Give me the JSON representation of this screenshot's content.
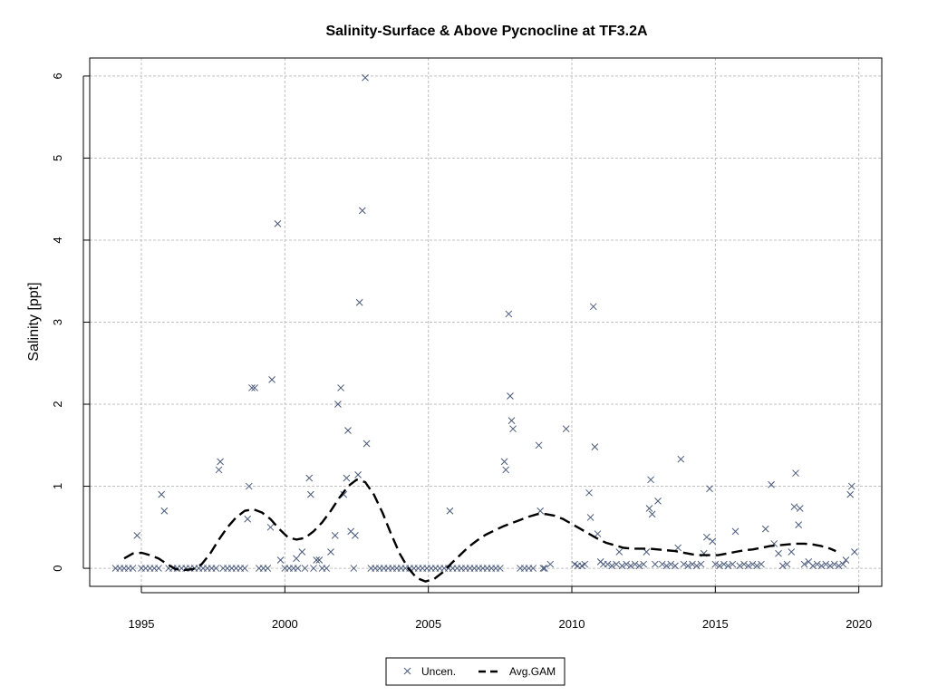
{
  "chart_data": {
    "type": "scatter",
    "title": "Salinity-Surface & Above Pycnocline at TF3.2A",
    "xlabel": "",
    "ylabel": "Salinity [ppt]",
    "xlim": [
      1993.2,
      2020.8
    ],
    "ylim": [
      -0.22,
      6.22
    ],
    "x_ticks": [
      1995,
      2000,
      2005,
      2010,
      2015,
      2020
    ],
    "y_ticks": [
      0,
      1,
      2,
      3,
      4,
      5,
      6
    ],
    "grid": true,
    "legend_position": "bottom-center",
    "colors": {
      "points": "#4a5a7a",
      "gam": "#000000",
      "grid": "#c0c0c0"
    },
    "series": [
      {
        "name": "Uncen.",
        "marker": "x",
        "points": [
          [
            1994.1,
            0
          ],
          [
            1994.25,
            0
          ],
          [
            1994.4,
            0
          ],
          [
            1994.55,
            0
          ],
          [
            1994.7,
            0
          ],
          [
            1994.85,
            0.4
          ],
          [
            1995.0,
            0
          ],
          [
            1995.15,
            0
          ],
          [
            1995.3,
            0
          ],
          [
            1995.45,
            0
          ],
          [
            1995.6,
            0
          ],
          [
            1995.7,
            0.9
          ],
          [
            1995.8,
            0.7
          ],
          [
            1995.95,
            0
          ],
          [
            1996.1,
            0
          ],
          [
            1996.25,
            0
          ],
          [
            1996.4,
            0
          ],
          [
            1996.55,
            0
          ],
          [
            1996.7,
            0
          ],
          [
            1996.85,
            0
          ],
          [
            1997.0,
            0
          ],
          [
            1997.15,
            0
          ],
          [
            1997.3,
            0
          ],
          [
            1997.45,
            0
          ],
          [
            1997.6,
            0
          ],
          [
            1997.7,
            1.2
          ],
          [
            1997.75,
            1.3
          ],
          [
            1997.85,
            0
          ],
          [
            1998.0,
            0
          ],
          [
            1998.15,
            0
          ],
          [
            1998.3,
            0
          ],
          [
            1998.45,
            0
          ],
          [
            1998.6,
            0
          ],
          [
            1998.7,
            0.6
          ],
          [
            1998.75,
            1.0
          ],
          [
            1998.85,
            2.2
          ],
          [
            1998.95,
            2.2
          ],
          [
            1999.1,
            0
          ],
          [
            1999.25,
            0
          ],
          [
            1999.4,
            0
          ],
          [
            1999.5,
            0.5
          ],
          [
            1999.55,
            2.3
          ],
          [
            1999.75,
            4.2
          ],
          [
            1999.85,
            0.1
          ],
          [
            2000.0,
            0
          ],
          [
            2000.15,
            0
          ],
          [
            2000.3,
            0
          ],
          [
            2000.4,
            0.12
          ],
          [
            2000.45,
            0
          ],
          [
            2000.6,
            0.2
          ],
          [
            2000.7,
            0
          ],
          [
            2000.85,
            1.1
          ],
          [
            2000.9,
            0.9
          ],
          [
            2001.0,
            0
          ],
          [
            2001.1,
            0.1
          ],
          [
            2001.2,
            0.1
          ],
          [
            2001.3,
            0
          ],
          [
            2001.45,
            0
          ],
          [
            2001.6,
            0.2
          ],
          [
            2001.75,
            0.4
          ],
          [
            2001.85,
            2.0
          ],
          [
            2001.95,
            2.2
          ],
          [
            2002.05,
            0.9
          ],
          [
            2002.15,
            1.1
          ],
          [
            2002.2,
            1.68
          ],
          [
            2002.3,
            0.45
          ],
          [
            2002.4,
            0
          ],
          [
            2002.45,
            0.4
          ],
          [
            2002.55,
            1.14
          ],
          [
            2002.6,
            3.24
          ],
          [
            2002.7,
            4.36
          ],
          [
            2002.8,
            5.98
          ],
          [
            2002.85,
            1.52
          ],
          [
            2003.0,
            0
          ],
          [
            2003.15,
            0
          ],
          [
            2003.3,
            0
          ],
          [
            2003.45,
            0
          ],
          [
            2003.6,
            0
          ],
          [
            2003.75,
            0
          ],
          [
            2003.9,
            0
          ],
          [
            2004.05,
            0
          ],
          [
            2004.2,
            0
          ],
          [
            2004.35,
            0
          ],
          [
            2004.5,
            0
          ],
          [
            2004.65,
            0
          ],
          [
            2004.8,
            0
          ],
          [
            2004.95,
            0
          ],
          [
            2005.1,
            0
          ],
          [
            2005.25,
            0
          ],
          [
            2005.4,
            0
          ],
          [
            2005.55,
            0
          ],
          [
            2005.7,
            0
          ],
          [
            2005.75,
            0.7
          ],
          [
            2005.85,
            0
          ],
          [
            2006.0,
            0
          ],
          [
            2006.15,
            0
          ],
          [
            2006.3,
            0
          ],
          [
            2006.45,
            0
          ],
          [
            2006.6,
            0
          ],
          [
            2006.75,
            0
          ],
          [
            2006.9,
            0
          ],
          [
            2007.05,
            0
          ],
          [
            2007.2,
            0
          ],
          [
            2007.35,
            0
          ],
          [
            2007.5,
            0
          ],
          [
            2007.65,
            1.3
          ],
          [
            2007.7,
            1.2
          ],
          [
            2007.8,
            3.1
          ],
          [
            2007.85,
            2.1
          ],
          [
            2007.9,
            1.8
          ],
          [
            2007.95,
            1.7
          ],
          [
            2008.2,
            0
          ],
          [
            2008.35,
            0
          ],
          [
            2008.5,
            0
          ],
          [
            2008.65,
            0
          ],
          [
            2008.85,
            1.5
          ],
          [
            2008.9,
            0.7
          ],
          [
            2009.0,
            0
          ],
          [
            2009.05,
            0
          ],
          [
            2009.25,
            0.05
          ],
          [
            2009.8,
            1.7
          ],
          [
            2010.1,
            0.05
          ],
          [
            2010.2,
            0.03
          ],
          [
            2010.35,
            0.03
          ],
          [
            2010.45,
            0.05
          ],
          [
            2010.6,
            0.92
          ],
          [
            2010.65,
            0.62
          ],
          [
            2010.75,
            3.19
          ],
          [
            2010.8,
            1.48
          ],
          [
            2010.9,
            0.42
          ],
          [
            2011.0,
            0.08
          ],
          [
            2011.1,
            0.05
          ],
          [
            2011.25,
            0.05
          ],
          [
            2011.4,
            0.03
          ],
          [
            2011.55,
            0.05
          ],
          [
            2011.65,
            0.2
          ],
          [
            2011.75,
            0.03
          ],
          [
            2011.9,
            0.05
          ],
          [
            2012.05,
            0.03
          ],
          [
            2012.2,
            0.05
          ],
          [
            2012.35,
            0.03
          ],
          [
            2012.5,
            0.05
          ],
          [
            2012.6,
            0.2
          ],
          [
            2012.7,
            0.73
          ],
          [
            2012.75,
            1.08
          ],
          [
            2012.8,
            0.66
          ],
          [
            2012.9,
            0.05
          ],
          [
            2013.0,
            0.82
          ],
          [
            2013.15,
            0.05
          ],
          [
            2013.3,
            0.03
          ],
          [
            2013.45,
            0.05
          ],
          [
            2013.6,
            0.03
          ],
          [
            2013.7,
            0.25
          ],
          [
            2013.8,
            1.33
          ],
          [
            2013.9,
            0.05
          ],
          [
            2014.05,
            0.03
          ],
          [
            2014.2,
            0.05
          ],
          [
            2014.35,
            0.03
          ],
          [
            2014.5,
            0.05
          ],
          [
            2014.6,
            0.18
          ],
          [
            2014.7,
            0.38
          ],
          [
            2014.8,
            0.97
          ],
          [
            2014.9,
            0.33
          ],
          [
            2015.0,
            0.05
          ],
          [
            2015.15,
            0.03
          ],
          [
            2015.3,
            0.05
          ],
          [
            2015.45,
            0.03
          ],
          [
            2015.6,
            0.05
          ],
          [
            2015.7,
            0.45
          ],
          [
            2015.85,
            0.03
          ],
          [
            2016.0,
            0.05
          ],
          [
            2016.15,
            0.03
          ],
          [
            2016.3,
            0.05
          ],
          [
            2016.45,
            0.03
          ],
          [
            2016.6,
            0.05
          ],
          [
            2016.75,
            0.48
          ],
          [
            2016.95,
            1.02
          ],
          [
            2017.05,
            0.3
          ],
          [
            2017.2,
            0.18
          ],
          [
            2017.35,
            0.03
          ],
          [
            2017.5,
            0.05
          ],
          [
            2017.65,
            0.2
          ],
          [
            2017.75,
            0.75
          ],
          [
            2017.8,
            1.16
          ],
          [
            2017.9,
            0.53
          ],
          [
            2017.95,
            0.73
          ],
          [
            2018.1,
            0.05
          ],
          [
            2018.25,
            0.08
          ],
          [
            2018.4,
            0.03
          ],
          [
            2018.55,
            0.05
          ],
          [
            2018.7,
            0.03
          ],
          [
            2018.85,
            0.05
          ],
          [
            2019.0,
            0.03
          ],
          [
            2019.15,
            0.05
          ],
          [
            2019.3,
            0.03
          ],
          [
            2019.45,
            0.05
          ],
          [
            2019.55,
            0.1
          ],
          [
            2019.7,
            0.9
          ],
          [
            2019.75,
            1.0
          ],
          [
            2019.85,
            0.2
          ]
        ]
      },
      {
        "name": "Avg.GAM",
        "line": "dashed",
        "points": [
          [
            1994.4,
            0.12
          ],
          [
            1994.7,
            0.18
          ],
          [
            1995.0,
            0.19
          ],
          [
            1995.3,
            0.16
          ],
          [
            1995.6,
            0.12
          ],
          [
            1995.9,
            0.05
          ],
          [
            1996.2,
            -0.01
          ],
          [
            1996.5,
            -0.02
          ],
          [
            1996.8,
            -0.01
          ],
          [
            1997.1,
            0.05
          ],
          [
            1997.4,
            0.18
          ],
          [
            1997.7,
            0.35
          ],
          [
            1998.0,
            0.5
          ],
          [
            1998.3,
            0.62
          ],
          [
            1998.6,
            0.7
          ],
          [
            1998.9,
            0.72
          ],
          [
            1999.2,
            0.68
          ],
          [
            1999.5,
            0.6
          ],
          [
            1999.8,
            0.48
          ],
          [
            2000.1,
            0.38
          ],
          [
            2000.4,
            0.35
          ],
          [
            2000.7,
            0.37
          ],
          [
            2001.0,
            0.45
          ],
          [
            2001.3,
            0.56
          ],
          [
            2001.6,
            0.7
          ],
          [
            2001.9,
            0.86
          ],
          [
            2002.2,
            1.0
          ],
          [
            2002.5,
            1.08
          ],
          [
            2002.8,
            1.05
          ],
          [
            2003.1,
            0.9
          ],
          [
            2003.4,
            0.68
          ],
          [
            2003.7,
            0.42
          ],
          [
            2004.0,
            0.18
          ],
          [
            2004.3,
            0.0
          ],
          [
            2004.6,
            -0.12
          ],
          [
            2004.9,
            -0.16
          ],
          [
            2005.2,
            -0.13
          ],
          [
            2005.5,
            -0.05
          ],
          [
            2005.8,
            0.06
          ],
          [
            2006.1,
            0.16
          ],
          [
            2006.4,
            0.26
          ],
          [
            2006.7,
            0.34
          ],
          [
            2007.0,
            0.41
          ],
          [
            2007.3,
            0.46
          ],
          [
            2007.6,
            0.51
          ],
          [
            2007.9,
            0.55
          ],
          [
            2008.2,
            0.59
          ],
          [
            2008.5,
            0.63
          ],
          [
            2008.8,
            0.66
          ],
          [
            2009.1,
            0.66
          ],
          [
            2009.4,
            0.64
          ],
          [
            2009.7,
            0.6
          ],
          [
            2010.0,
            0.54
          ],
          [
            2010.3,
            0.48
          ],
          [
            2010.6,
            0.42
          ],
          [
            2010.9,
            0.36
          ],
          [
            2011.2,
            0.31
          ],
          [
            2011.5,
            0.28
          ],
          [
            2011.8,
            0.25
          ],
          [
            2012.1,
            0.24
          ],
          [
            2012.4,
            0.24
          ],
          [
            2012.7,
            0.24
          ],
          [
            2013.0,
            0.23
          ],
          [
            2013.3,
            0.22
          ],
          [
            2013.6,
            0.21
          ],
          [
            2013.9,
            0.19
          ],
          [
            2014.2,
            0.17
          ],
          [
            2014.5,
            0.16
          ],
          [
            2014.8,
            0.16
          ],
          [
            2015.1,
            0.16
          ],
          [
            2015.4,
            0.18
          ],
          [
            2015.7,
            0.2
          ],
          [
            2016.0,
            0.22
          ],
          [
            2016.3,
            0.23
          ],
          [
            2016.6,
            0.25
          ],
          [
            2016.9,
            0.27
          ],
          [
            2017.2,
            0.28
          ],
          [
            2017.5,
            0.29
          ],
          [
            2017.8,
            0.3
          ],
          [
            2018.1,
            0.3
          ],
          [
            2018.4,
            0.29
          ],
          [
            2018.7,
            0.27
          ],
          [
            2019.0,
            0.24
          ],
          [
            2019.2,
            0.21
          ]
        ]
      }
    ]
  }
}
